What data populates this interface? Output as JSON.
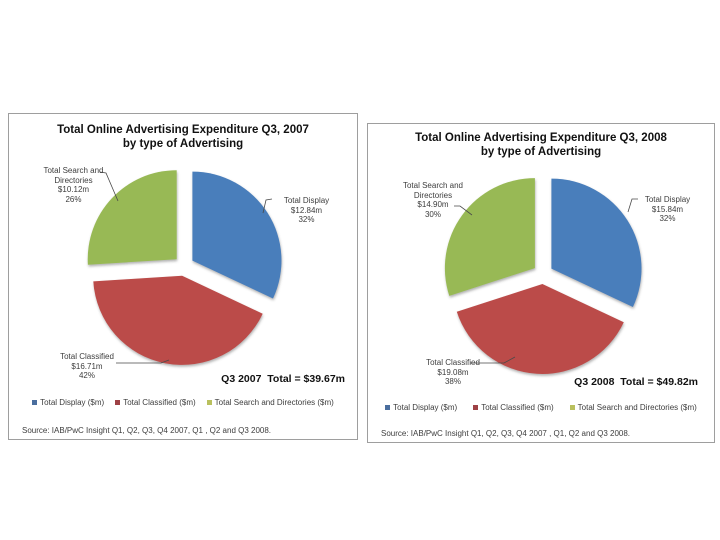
{
  "page": {
    "background_color": "#ffffff",
    "panel_border_color": "#9e9e9e"
  },
  "chart_data": [
    {
      "type": "pie",
      "title": "Total Online Advertising Expenditure Q3, 2007",
      "subtitle": "by type of Advertising",
      "total_label": "Q3 2007  Total = $39.67m",
      "total_value_millions": 39.67,
      "slices": [
        {
          "label": "Total Display",
          "value": 12.84,
          "pct": 32,
          "color": "#4a7ebb",
          "callout_lines": [
            "Total Display",
            "$12.84m",
            "32%"
          ]
        },
        {
          "label": "Total Classified",
          "value": 16.71,
          "pct": 42,
          "color": "#bb4b48",
          "callout_lines": [
            "Total Classified",
            "$16.71m",
            "42%"
          ]
        },
        {
          "label": "Total Search and Directories",
          "value": 10.12,
          "pct": 26,
          "color": "#98b954",
          "callout_lines": [
            "Total Search and",
            "Directories",
            "$10.12m",
            "26%"
          ]
        }
      ],
      "legend": [
        {
          "label": "Total Display ($m)",
          "color": "#4a6e9e"
        },
        {
          "label": "Total Classified ($m)",
          "color": "#9e4145"
        },
        {
          "label": "Total Search and Directories ($m)",
          "color": "#b9c05e"
        }
      ],
      "legend_position": "bottom",
      "source": "Source: IAB/PwC Insight Q1, Q2, Q3, Q4 2007, Q1 , Q2  and Q3 2008."
    },
    {
      "type": "pie",
      "title": "Total Online Advertising Expenditure Q3, 2008",
      "subtitle": "by type of Advertising",
      "total_label": "Q3 2008  Total = $49.82m",
      "total_value_millions": 49.82,
      "slices": [
        {
          "label": "Total Display",
          "value": 15.84,
          "pct": 32,
          "color": "#4a7ebb",
          "callout_lines": [
            "Total Display",
            "$15.84m",
            "32%"
          ]
        },
        {
          "label": "Total Classified",
          "value": 19.08,
          "pct": 38,
          "color": "#bb4b48",
          "callout_lines": [
            "Total Classified",
            "$19.08m",
            "38%"
          ]
        },
        {
          "label": "Total Search and Directories",
          "value": 14.9,
          "pct": 30,
          "color": "#98b954",
          "callout_lines": [
            "Total Search and",
            "Directories",
            "$14.90m",
            "30%"
          ]
        }
      ],
      "legend": [
        {
          "label": "Total Display ($m)",
          "color": "#4a6e9e"
        },
        {
          "label": "Total Classified ($m)",
          "color": "#9e4145"
        },
        {
          "label": "Total Search and Directories ($m)",
          "color": "#b9c05e"
        }
      ],
      "legend_position": "bottom",
      "source": "Source: IAB/PwC Insight Q1, Q2, Q3, Q4 2007 , Q1, Q2 and Q3 2008."
    }
  ]
}
